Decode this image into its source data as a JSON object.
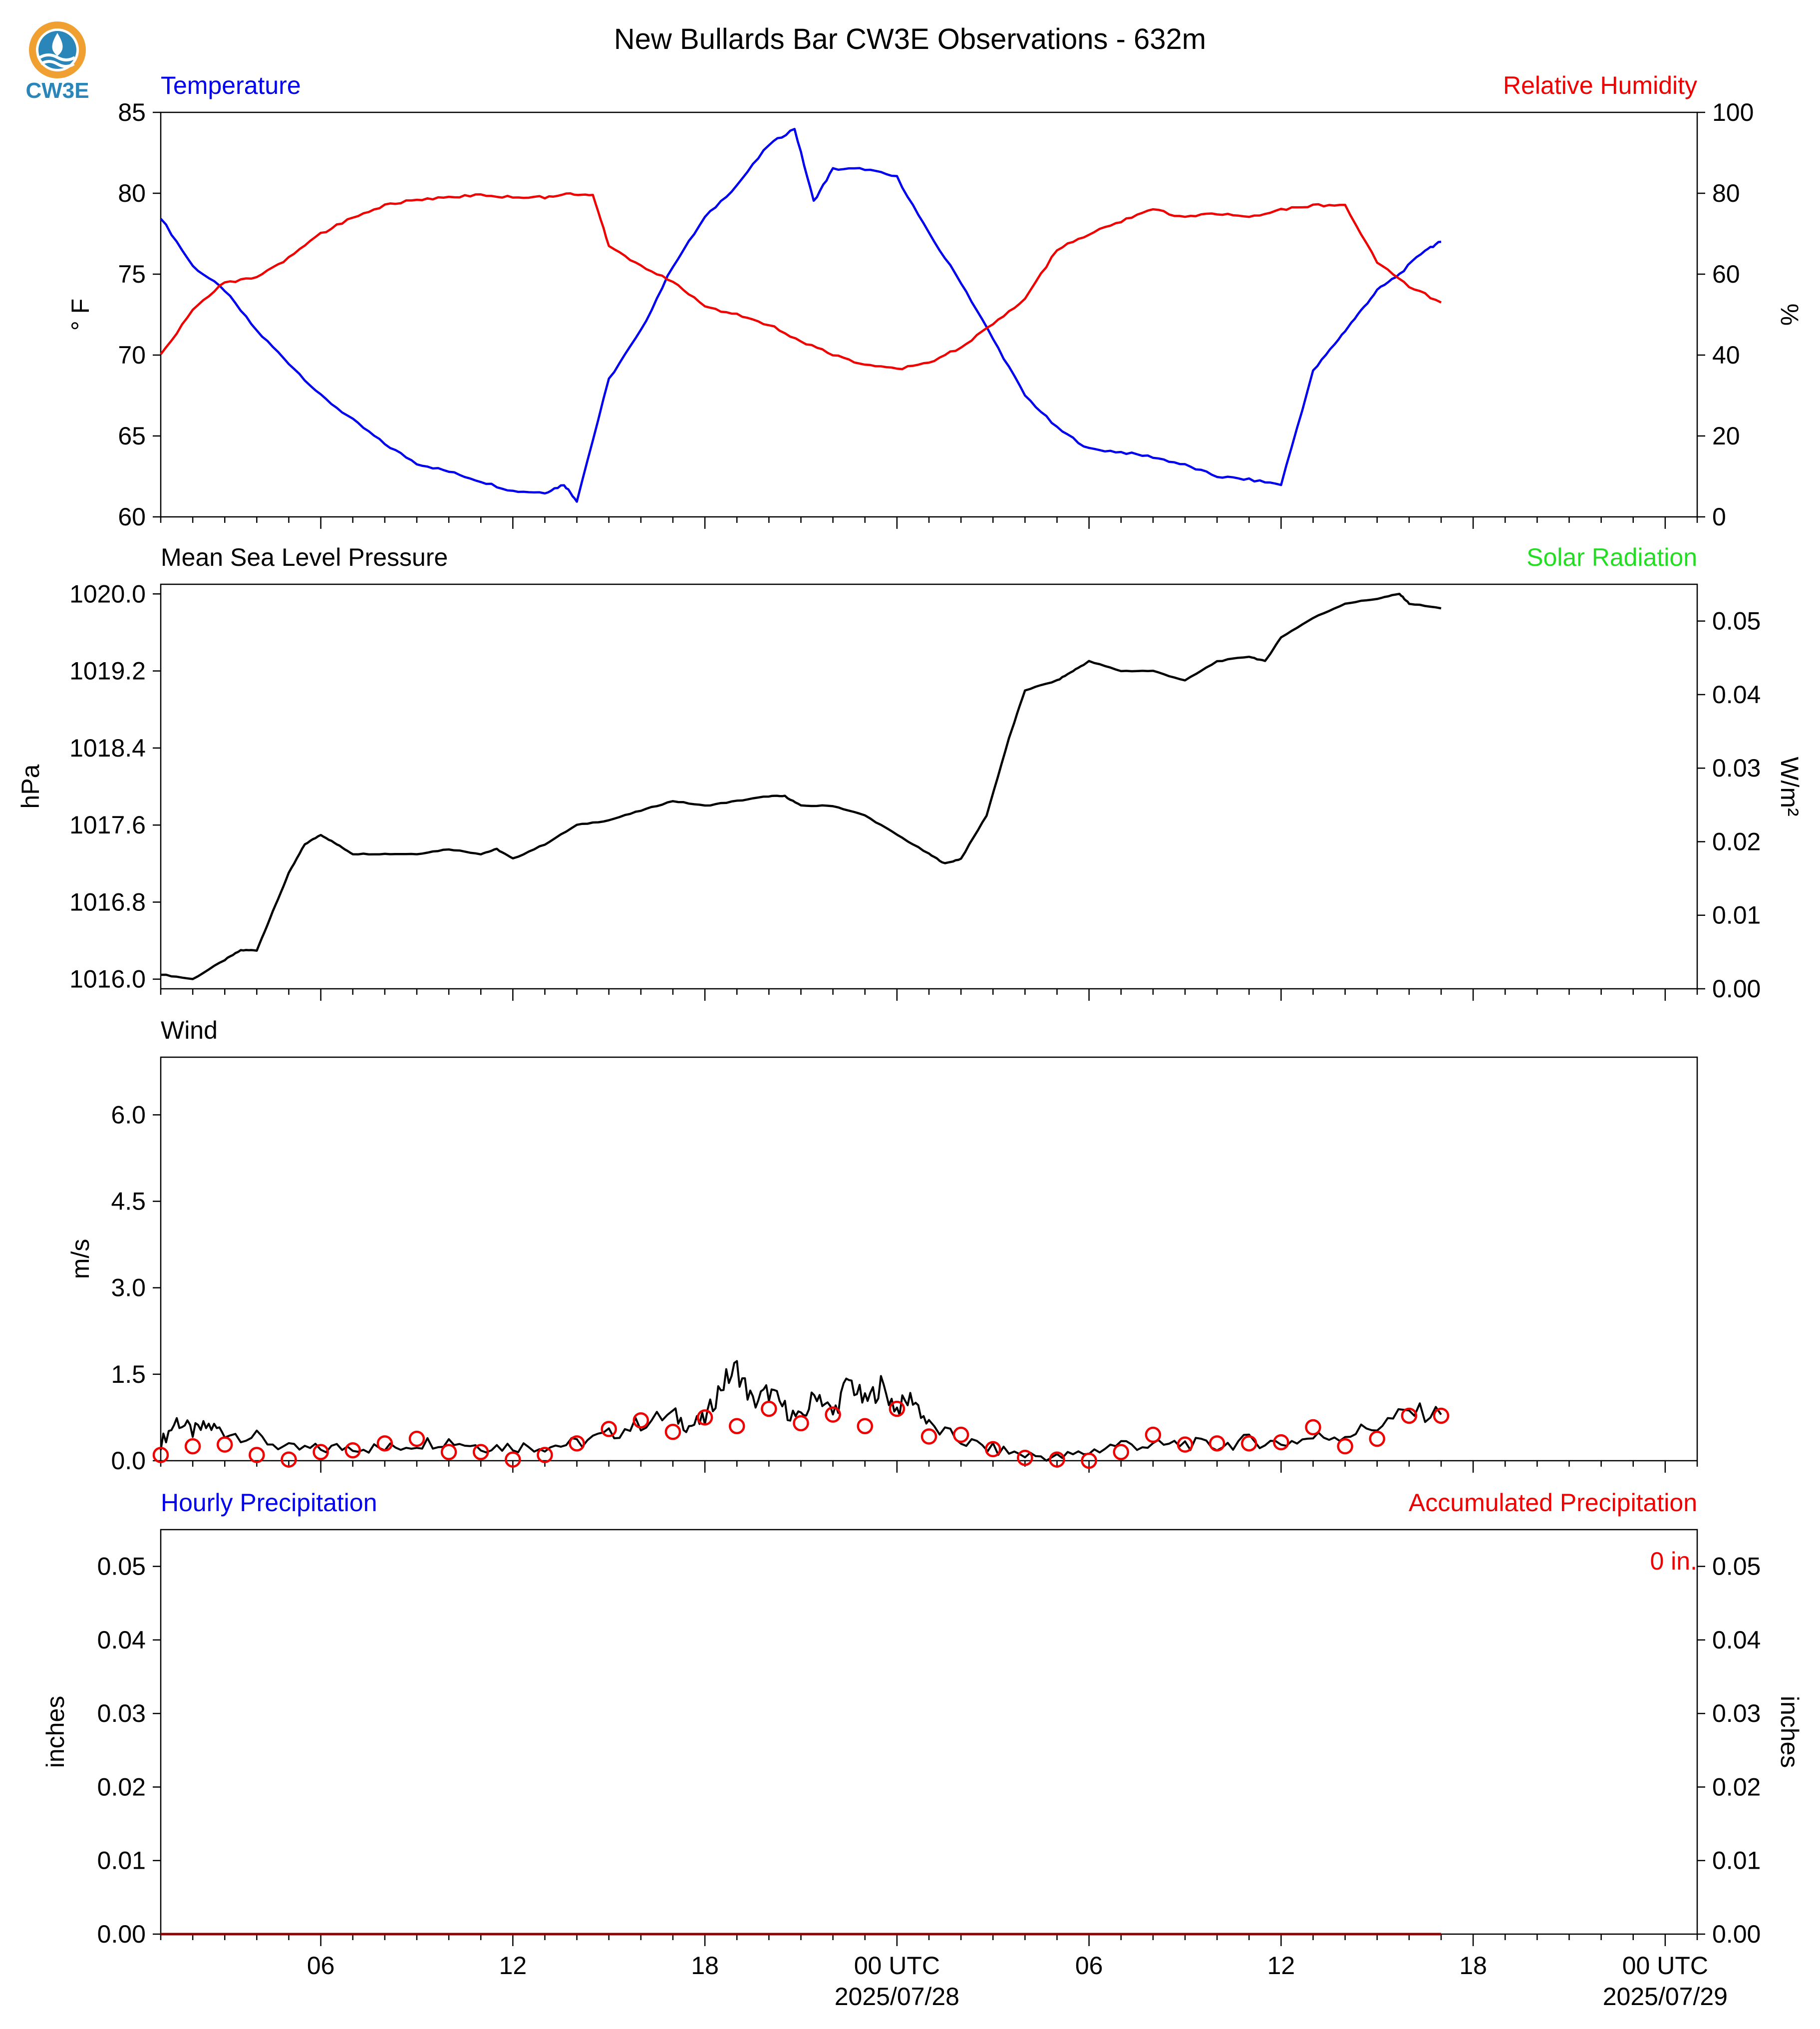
{
  "title": "New Bullards Bar CW3E Observations - 632m",
  "logo": {
    "text": "CW3E",
    "icon": "cw3e-logo-icon",
    "colors": {
      "ring": "#f0a030",
      "wave": "#2a86b8"
    }
  },
  "x_axis": {
    "tick_labels": [
      "06",
      "12",
      "18",
      "00 UTC",
      "06",
      "12",
      "18",
      "00 UTC"
    ],
    "date_labels": [
      "2025/07/28",
      "2025/07/29"
    ]
  },
  "panels": {
    "temperature": {
      "left_title": "Temperature",
      "right_title": "Relative Humidity",
      "left_unit": "° F",
      "right_unit": "%",
      "left_color": "#0000ee",
      "right_color": "#ee0000"
    },
    "pressure": {
      "left_title": "Mean Sea Level Pressure",
      "right_title": "Solar Radiation",
      "left_unit": "hPa",
      "right_unit": "W/m²",
      "right_color": "#22dd22"
    },
    "wind": {
      "left_title": "Wind",
      "left_unit": "m/s"
    },
    "precip": {
      "left_title": "Hourly Precipitation",
      "right_title": "Accumulated Precipitation",
      "left_unit": "inches",
      "right_unit": "inches",
      "accum_label": "0 in.",
      "left_color": "#0000ee",
      "right_color": "#ee0000"
    }
  },
  "chart_data": [
    {
      "type": "line",
      "title": "Temperature",
      "x_unit": "hours since 2025/07/27 01 UTC",
      "xlim": [
        0,
        48
      ],
      "series": [
        {
          "name": "Temperature",
          "axis": "left",
          "color": "#0000ee",
          "x": [
            0,
            1,
            2,
            3,
            4,
            5,
            6,
            7,
            8,
            9,
            10,
            11,
            12,
            12.6,
            13,
            14,
            15,
            16,
            17,
            18,
            19,
            19.8,
            20.4,
            21,
            22,
            23,
            24,
            25,
            26,
            27,
            28,
            29,
            30,
            31,
            32,
            33,
            34,
            35,
            36,
            36.8,
            37.4,
            38,
            38.7,
            39.5,
            40
          ],
          "y": [
            78.5,
            75.5,
            74,
            71.5,
            69.5,
            67.5,
            66,
            64.5,
            63.3,
            62.8,
            62.2,
            61.6,
            61.5,
            62,
            61,
            68.5,
            71.5,
            75.5,
            78.5,
            80.5,
            83,
            84,
            79.5,
            81.5,
            81.5,
            81,
            77.5,
            74.5,
            71,
            67.5,
            65.5,
            64.2,
            64,
            63.7,
            63.2,
            62.5,
            62.3,
            62,
            69,
            71,
            72.5,
            74,
            75,
            76.5,
            77
          ]
        },
        {
          "name": "Relative Humidity",
          "axis": "right",
          "color": "#ee0000",
          "x": [
            0,
            1,
            2,
            3,
            4,
            5,
            6,
            7,
            8,
            9,
            10,
            11,
            12,
            12.8,
            13.5,
            14,
            15,
            16,
            17,
            18,
            19,
            20,
            21,
            22,
            23,
            24,
            25,
            26,
            27,
            28,
            29,
            30,
            31,
            32,
            33,
            34,
            35,
            36,
            37,
            38,
            39,
            40
          ],
          "y": [
            40,
            51,
            58,
            59,
            64,
            70,
            74,
            77,
            78.5,
            79,
            79.5,
            79,
            79,
            80,
            79.5,
            67,
            62,
            58,
            52,
            50,
            47.5,
            43.5,
            40,
            37.5,
            36.5,
            38,
            42,
            47.5,
            54,
            66,
            70,
            73,
            76,
            74,
            75,
            74,
            76,
            77,
            77,
            63,
            57,
            53
          ]
        }
      ],
      "axes": {
        "left": {
          "ylim": [
            60,
            85
          ],
          "ticks": [
            60,
            65,
            70,
            75,
            80,
            85
          ]
        },
        "right": {
          "ylim": [
            0,
            100
          ],
          "ticks": [
            0,
            20,
            40,
            60,
            80,
            100
          ]
        }
      }
    },
    {
      "type": "line",
      "title": "Mean Sea Level Pressure",
      "x_unit": "hours since 2025/07/27 01 UTC",
      "xlim": [
        0,
        48
      ],
      "series": [
        {
          "name": "Mean Sea Level Pressure",
          "axis": "left",
          "color": "#000000",
          "x": [
            0,
            1,
            2,
            2.5,
            3,
            3.5,
            4,
            4.5,
            5,
            5.5,
            6,
            7,
            8,
            9,
            10,
            10.5,
            11,
            12,
            13,
            14,
            15,
            16,
            17,
            18,
            19,
            19.5,
            20,
            21,
            22,
            23,
            24,
            24.5,
            25,
            25.8,
            26.5,
            27,
            28,
            28.5,
            29,
            30,
            31,
            32,
            33,
            34,
            34.5,
            35,
            36,
            37,
            38,
            38.7,
            39,
            40
          ],
          "y": [
            1016.05,
            1016.0,
            1016.2,
            1016.3,
            1016.3,
            1016.7,
            1017.1,
            1017.4,
            1017.5,
            1017.4,
            1017.3,
            1017.3,
            1017.3,
            1017.35,
            1017.3,
            1017.35,
            1017.25,
            1017.4,
            1017.6,
            1017.65,
            1017.75,
            1017.85,
            1017.8,
            1017.85,
            1017.9,
            1017.9,
            1017.8,
            1017.8,
            1017.7,
            1017.5,
            1017.3,
            1017.2,
            1017.25,
            1017.7,
            1018.5,
            1019.0,
            1019.1,
            1019.2,
            1019.3,
            1019.2,
            1019.2,
            1019.1,
            1019.3,
            1019.35,
            1019.3,
            1019.55,
            1019.75,
            1019.9,
            1019.95,
            1020.0,
            1019.9,
            1019.85
          ]
        },
        {
          "name": "Solar Radiation",
          "axis": "right",
          "color": "#22dd22",
          "x": [],
          "y": []
        }
      ],
      "axes": {
        "left": {
          "ylim": [
            1015.9,
            1020.1
          ],
          "ticks": [
            1016.0,
            1016.8,
            1017.6,
            1018.4,
            1019.2,
            1020.0
          ]
        },
        "right": {
          "ylim": [
            0,
            0.055
          ],
          "ticks": [
            0.0,
            0.01,
            0.02,
            0.03,
            0.04,
            0.05
          ]
        }
      }
    },
    {
      "type": "line",
      "title": "Wind",
      "x_unit": "hours since 2025/07/27 01 UTC",
      "xlim": [
        0,
        48
      ],
      "series": [
        {
          "name": "Wind",
          "axis": "left",
          "color": "#000000",
          "x": [
            0,
            0.5,
            1,
            1.5,
            2,
            3,
            4,
            5,
            6,
            7,
            8,
            9,
            10,
            11,
            12,
            13,
            14,
            15,
            16,
            16.5,
            17,
            17.5,
            18,
            18.5,
            19,
            19.5,
            20,
            20.5,
            21,
            21.5,
            22,
            22.5,
            23,
            23.5,
            24,
            25,
            26,
            27,
            28,
            29,
            30,
            31,
            32,
            33,
            34,
            35,
            36,
            37,
            38,
            39,
            40
          ],
          "y": [
            0.3,
            0.7,
            0.5,
            0.6,
            0.5,
            0.4,
            0.2,
            0.2,
            0.25,
            0.2,
            0.3,
            0.35,
            0.25,
            0.25,
            0.25,
            0.3,
            0.45,
            0.65,
            0.8,
            0.6,
            0.7,
            1.3,
            1.6,
            1.0,
            1.2,
            0.9,
            0.7,
            1.2,
            0.8,
            1.4,
            1.0,
            1.3,
            0.9,
            1.1,
            0.6,
            0.35,
            0.2,
            0.1,
            0.05,
            0.15,
            0.3,
            0.25,
            0.3,
            0.25,
            0.35,
            0.3,
            0.4,
            0.45,
            0.6,
            0.85,
            0.8
          ]
        },
        {
          "name": "Wind markers",
          "axis": "left",
          "color": "#ee0000",
          "marker": "circle",
          "x": [
            0,
            1,
            2,
            3,
            4,
            5,
            6,
            7,
            8,
            9,
            10,
            11,
            12,
            13,
            14,
            15,
            16,
            17,
            18,
            19,
            20,
            21,
            22,
            23,
            24,
            25,
            26,
            27,
            28,
            29,
            30,
            31,
            32,
            33,
            34,
            35,
            36,
            37,
            38,
            39,
            40
          ],
          "y": [
            0.1,
            0.25,
            0.28,
            0.1,
            0.02,
            0.15,
            0.18,
            0.3,
            0.38,
            0.15,
            0.15,
            0.02,
            0.1,
            0.3,
            0.55,
            0.7,
            0.5,
            0.75,
            0.6,
            0.9,
            0.65,
            0.8,
            0.6,
            0.9,
            0.42,
            0.45,
            0.2,
            0.05,
            0.02,
            0.0,
            0.15,
            0.45,
            0.28,
            0.3,
            0.3,
            0.32,
            0.58,
            0.25,
            0.38,
            0.78,
            0.78
          ]
        }
      ],
      "axes": {
        "left": {
          "ylim": [
            0,
            7
          ],
          "ticks": [
            0.0,
            1.5,
            3.0,
            4.5,
            6.0
          ]
        }
      }
    },
    {
      "type": "line",
      "title": "Hourly Precipitation",
      "x_unit": "hours since 2025/07/27 01 UTC",
      "xlim": [
        0,
        48
      ],
      "series": [
        {
          "name": "Hourly Precipitation",
          "axis": "left",
          "color": "#0000ee",
          "x": [
            0,
            40
          ],
          "y": [
            0,
            0
          ]
        },
        {
          "name": "Accumulated Precipitation",
          "axis": "right",
          "color": "#8b0000",
          "x": [
            0,
            40
          ],
          "y": [
            0,
            0
          ]
        }
      ],
      "axes": {
        "left": {
          "ylim": [
            0,
            0.055
          ],
          "ticks": [
            0.0,
            0.01,
            0.02,
            0.03,
            0.04,
            0.05
          ]
        },
        "right": {
          "ylim": [
            0,
            0.055
          ],
          "ticks": [
            0.0,
            0.01,
            0.02,
            0.03,
            0.04,
            0.05
          ]
        }
      }
    }
  ]
}
